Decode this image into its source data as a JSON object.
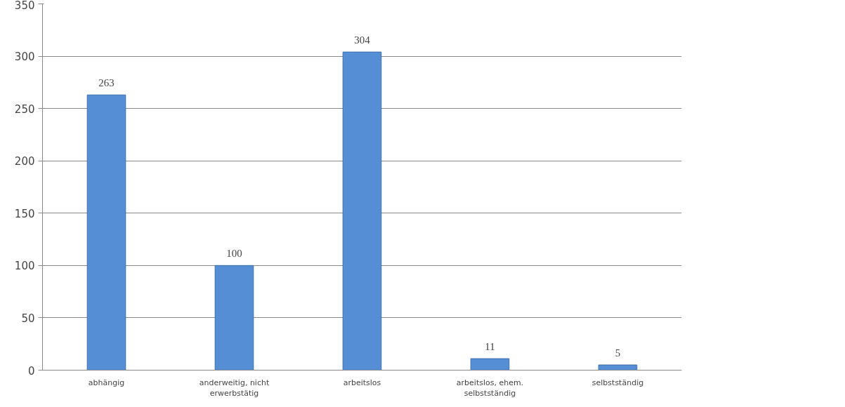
{
  "chart_data": {
    "type": "bar",
    "categories": [
      "abhängig",
      "anderweitig, nicht erwerbstätig",
      "arbeitslos",
      "arbeitslos, ehem. selbstständig",
      "selbstständig"
    ],
    "values": [
      263,
      100,
      304,
      11,
      5
    ],
    "color": "#558ed5",
    "ylim": [
      0,
      350
    ],
    "yticks": [
      0,
      50,
      100,
      150,
      200,
      250,
      300,
      350
    ],
    "grid": "y",
    "data_labels": true
  }
}
